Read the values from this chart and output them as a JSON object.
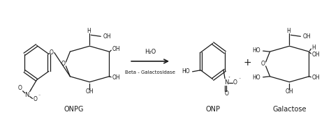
{
  "figsize": [
    4.74,
    1.81
  ],
  "dpi": 100,
  "bg_color": "#ffffff",
  "arrow_label_top": "H₂O",
  "arrow_label_bottom": "Beta - Galactosidase",
  "plus_sign": "+",
  "label_onpg": "ONPG",
  "label_onp": "ONP",
  "label_galactose": "Galactose",
  "text_color": "#1a1a1a",
  "line_color": "#1a1a1a",
  "line_width": 0.9,
  "font_size_label": 7,
  "font_size_atom": 5.5,
  "font_size_plus": 10
}
